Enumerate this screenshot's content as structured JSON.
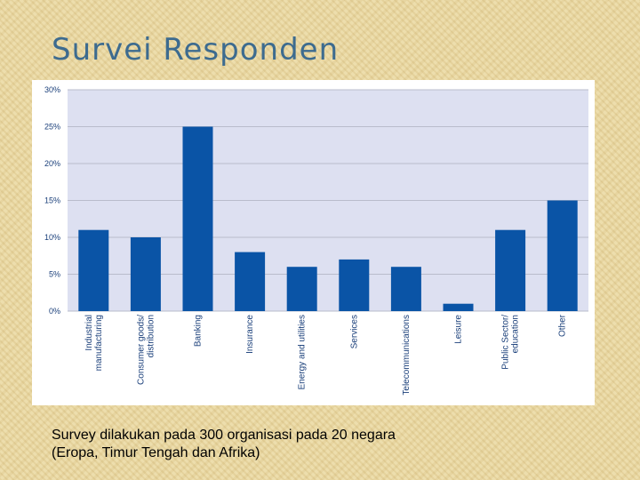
{
  "slide": {
    "title": "Survei Responden",
    "caption_lines": [
      "Survey dilakukan pada 300 organisasi pada 20 negara",
      "(Eropa, Timur Tengah dan Afrika)"
    ]
  },
  "colors": {
    "bar": "#0a54a6",
    "plot_background": "#dde0f1",
    "gridline": "#b9bccc",
    "axis_text": "#1a3f7a",
    "title": "#3d6b8f"
  },
  "chart_data": {
    "type": "bar",
    "categories": [
      [
        "Industrial",
        "manufacturing"
      ],
      [
        "Consumer goods/",
        "distribution"
      ],
      [
        "Banking"
      ],
      [
        "Insurance"
      ],
      [
        "Energy and utilities"
      ],
      [
        "Services"
      ],
      [
        "Telecommunications"
      ],
      [
        "Leisure"
      ],
      [
        "Public Sector/",
        "education"
      ],
      [
        "Other"
      ]
    ],
    "values": [
      11,
      10,
      25,
      8,
      6,
      7,
      6,
      1,
      11,
      15
    ],
    "ylim": [
      0,
      30
    ],
    "yticks": [
      "0%",
      "5%",
      "10%",
      "15%",
      "20%",
      "25%",
      "30%"
    ],
    "ytick_values": [
      0,
      5,
      10,
      15,
      20,
      25,
      30
    ],
    "grid": true
  }
}
